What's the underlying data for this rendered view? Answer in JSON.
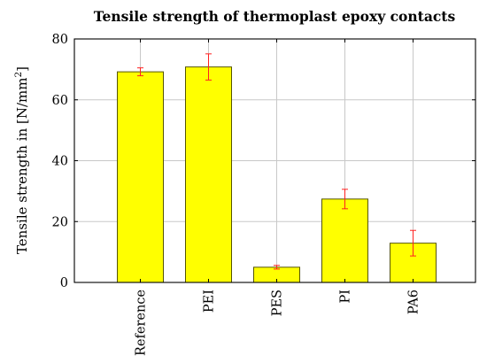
{
  "chart_data": {
    "type": "bar",
    "title": "Tensile strength of thermoplast epoxy contacts",
    "xlabel": "",
    "ylabel": "Tensile strength in [N/mm",
    "ylabel_sup": "2",
    "ylabel_close": "]",
    "categories": [
      "Reference",
      "PEI",
      "PES",
      "PI",
      "PA6"
    ],
    "series": [
      {
        "values": [
          69.2,
          70.8,
          5.0,
          27.4,
          12.9
        ],
        "errors": [
          1.3,
          4.3,
          0.6,
          3.2,
          4.2
        ]
      }
    ],
    "ylim": [
      0,
      80
    ],
    "yticks": [
      0,
      20,
      40,
      60,
      80
    ],
    "grid": true,
    "bar_color": "#ffff00",
    "bar_edge_color": "#555500",
    "error_color": "#ff2020"
  }
}
